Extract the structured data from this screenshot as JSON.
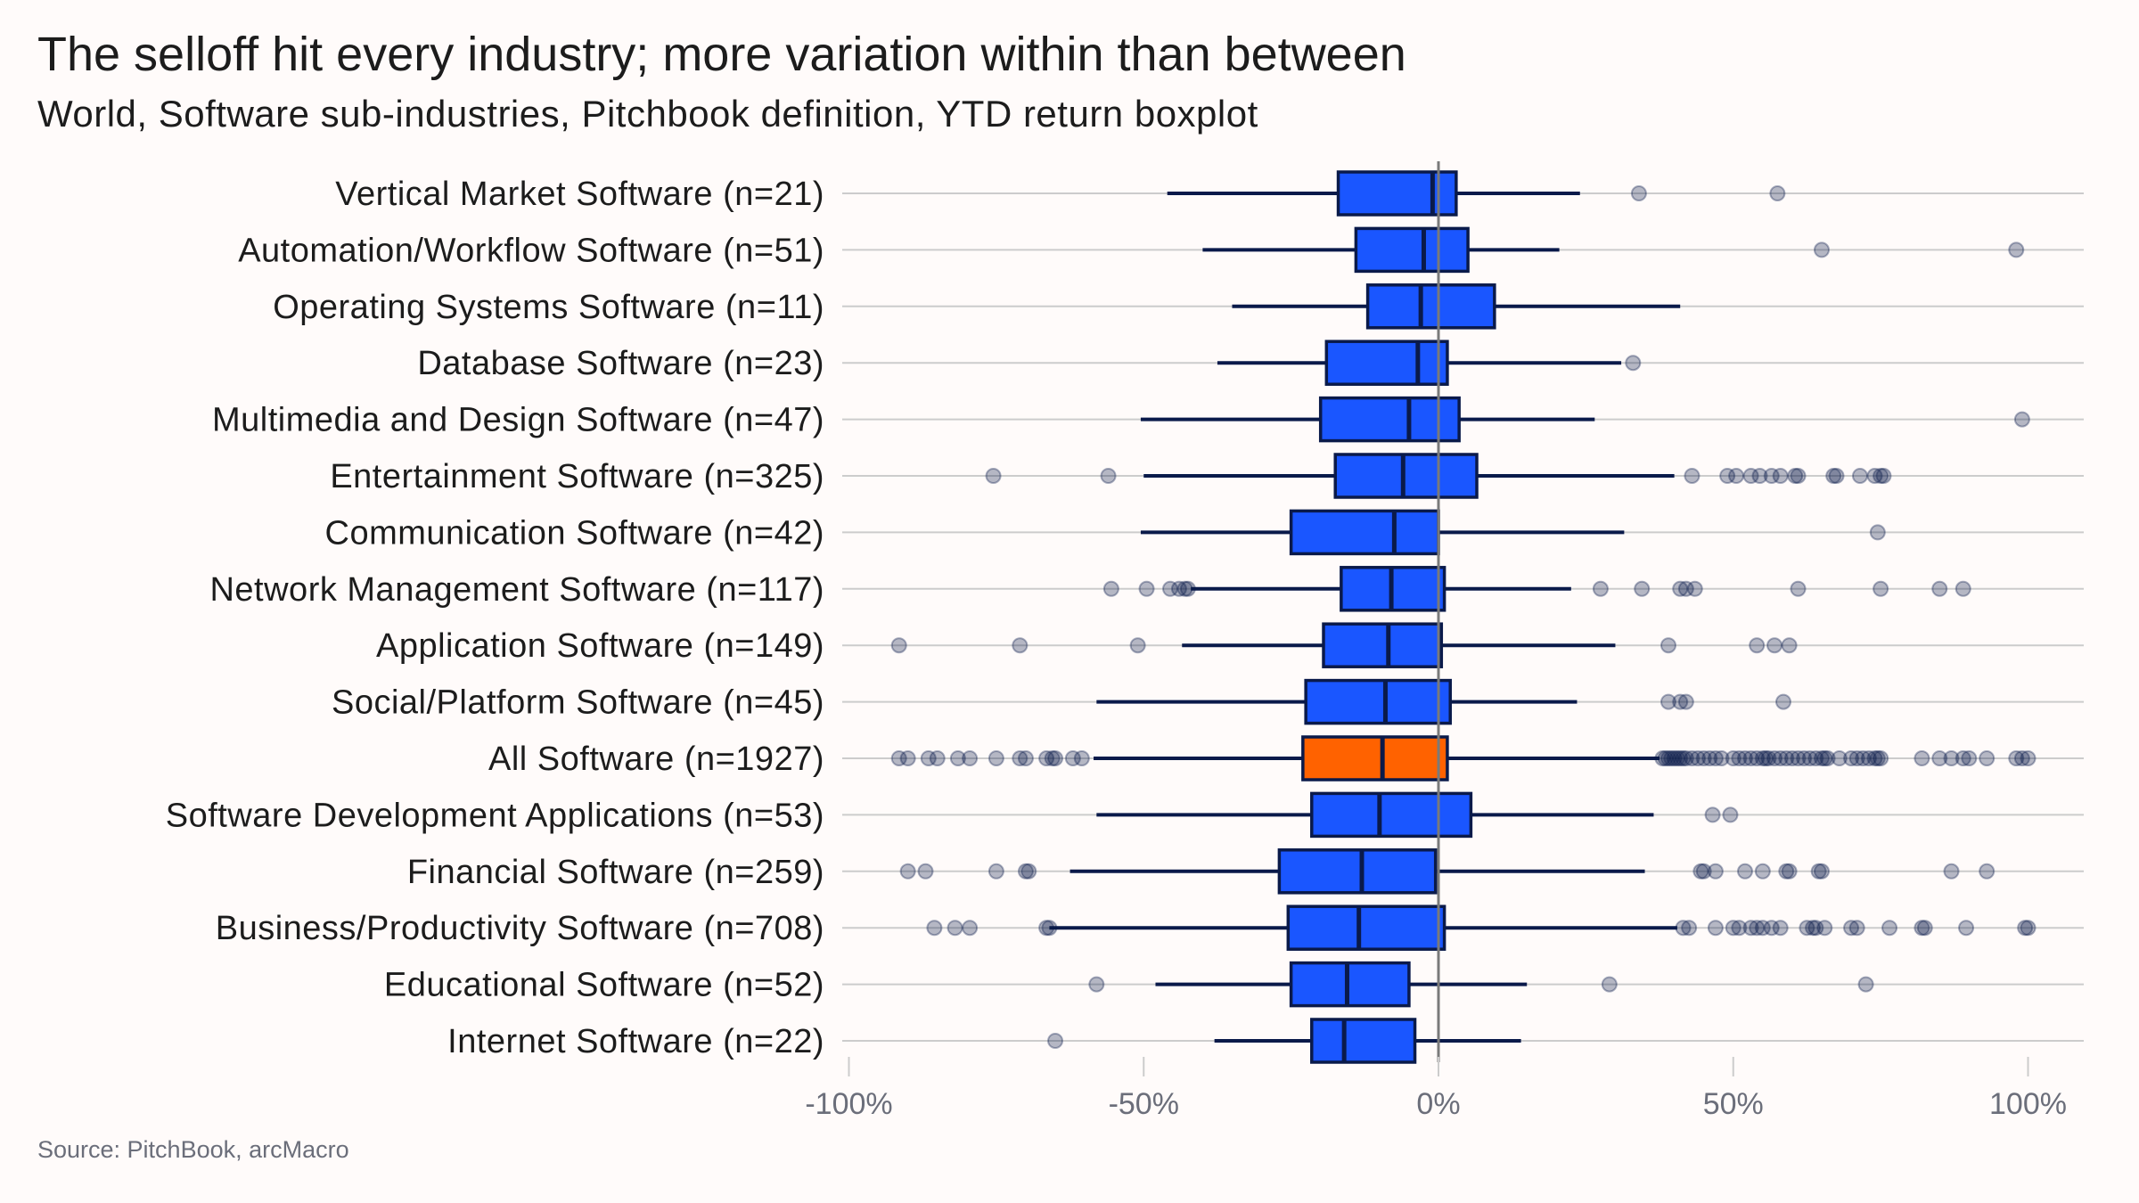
{
  "title": "The selloff hit every industry; more variation within than between",
  "subtitle": "World, Software sub-industries, Pitchbook definition, YTD return boxplot",
  "source": "Source: PitchBook, arcMacro",
  "colors": {
    "box": "#1a56ff",
    "highlight_box": "#ff6200",
    "outline": "#0a1a4a",
    "outlier": "#0a1a4a",
    "zero_line": "#7a7a7a",
    "grid": "#cccccc",
    "background": "#fffbfa"
  },
  "chart_data": {
    "type": "boxplot",
    "orientation": "horizontal",
    "xlim": [
      -100,
      108
    ],
    "x_ticks": [
      -100,
      -50,
      0,
      50,
      100
    ],
    "x_tick_labels": [
      "-100%",
      "-50%",
      "0%",
      "50%",
      "100%"
    ],
    "reference_line": 0,
    "grid": "horizontal category lines",
    "groups": [
      {
        "label": "Vertical Market Software  (n=21)",
        "whisker_low": -46,
        "q1": -17,
        "median": -1,
        "q3": 3,
        "whisker_high": 24,
        "outliers": [
          34,
          57.5
        ]
      },
      {
        "label": "Automation/Workflow Software  (n=51)",
        "whisker_low": -40,
        "q1": -14,
        "median": -2.5,
        "q3": 5,
        "whisker_high": 20.5,
        "outliers": [
          65,
          98
        ]
      },
      {
        "label": "Operating Systems Software  (n=11)",
        "whisker_low": -35,
        "q1": -12,
        "median": -3,
        "q3": 9.5,
        "whisker_high": 41,
        "outliers": []
      },
      {
        "label": "Database Software  (n=23)",
        "whisker_low": -37.5,
        "q1": -19,
        "median": -3.5,
        "q3": 1.5,
        "whisker_high": 31,
        "outliers": [
          33
        ]
      },
      {
        "label": "Multimedia and Design Software  (n=47)",
        "whisker_low": -50.5,
        "q1": -20,
        "median": -5,
        "q3": 3.5,
        "whisker_high": 26.5,
        "outliers": [
          99
        ]
      },
      {
        "label": "Entertainment Software  (n=325)",
        "whisker_low": -50,
        "q1": -17.5,
        "median": -6,
        "q3": 6.5,
        "whisker_high": 40,
        "outliers": [
          -75.5,
          -56,
          43,
          49,
          50.5,
          53,
          54.5,
          56.5,
          58,
          60.5,
          61,
          67,
          67.5,
          71.5,
          74,
          75,
          75.5
        ]
      },
      {
        "label": "Communication Software  (n=42)",
        "whisker_low": -50.5,
        "q1": -25,
        "median": -7.5,
        "q3": 0,
        "whisker_high": 31.5,
        "outliers": [
          74.5
        ]
      },
      {
        "label": "Network Management Software  (n=117)",
        "whisker_low": -42,
        "q1": -16.5,
        "median": -8,
        "q3": 1,
        "whisker_high": 22.5,
        "outliers": [
          -55.5,
          -49.5,
          -45.5,
          -44,
          -43,
          -42.5,
          27.5,
          34.5,
          41,
          42,
          43.5,
          61,
          75,
          85,
          89
        ]
      },
      {
        "label": "Application Software  (n=149)",
        "whisker_low": -43.5,
        "q1": -19.5,
        "median": -8.5,
        "q3": 0.5,
        "whisker_high": 30,
        "outliers": [
          -91.5,
          -71,
          -51,
          39,
          54,
          57,
          59.5
        ]
      },
      {
        "label": "Social/Platform Software  (n=45)",
        "whisker_low": -58,
        "q1": -22.5,
        "median": -9,
        "q3": 2,
        "whisker_high": 23.5,
        "outliers": [
          39,
          41,
          42,
          58.5
        ]
      },
      {
        "label": "All Software  (n=1927)",
        "highlight": true,
        "whisker_low": -58.5,
        "q1": -23,
        "median": -9.5,
        "q3": 1.5,
        "whisker_high": 37.5,
        "outliers": [
          -91.5,
          -90,
          -86.5,
          -85,
          -81.5,
          -79.5,
          -75,
          -71,
          -70,
          -66.5,
          -65.5,
          -65,
          -62,
          -60.5,
          38,
          38.5,
          39,
          39.5,
          40,
          40.5,
          41,
          41.5,
          42,
          43,
          44,
          45,
          46,
          47,
          48,
          50,
          51,
          52,
          53,
          54,
          55,
          55.5,
          56,
          57,
          58,
          59,
          60,
          61,
          62,
          63,
          64,
          65,
          65.5,
          66,
          68,
          70,
          71,
          72,
          73,
          74,
          74.5,
          75,
          82,
          85,
          87,
          89,
          90,
          93,
          98,
          99,
          100
        ]
      },
      {
        "label": "Software Development Applications  (n=53)",
        "whisker_low": -58,
        "q1": -21.5,
        "median": -10,
        "q3": 5.5,
        "whisker_high": 36.5,
        "outliers": [
          46.5,
          49.5
        ]
      },
      {
        "label": "Financial Software  (n=259)",
        "whisker_low": -62.5,
        "q1": -27,
        "median": -13,
        "q3": -0.5,
        "whisker_high": 35,
        "outliers": [
          -90,
          -87,
          -75,
          -70,
          -69.5,
          44.5,
          45,
          47,
          52,
          55,
          59,
          59.5,
          64.5,
          65,
          87,
          93
        ]
      },
      {
        "label": "Business/Productivity Software  (n=708)",
        "whisker_low": -66,
        "q1": -25.5,
        "median": -13.5,
        "q3": 1,
        "whisker_high": 40.5,
        "outliers": [
          -85.5,
          -82,
          -79.5,
          -66.5,
          -66,
          41.5,
          42.5,
          47,
          50,
          51,
          53,
          54,
          55,
          56.5,
          58,
          62.5,
          63.5,
          64,
          65.5,
          70,
          71,
          76.5,
          82,
          82.5,
          89.5,
          99.5,
          100
        ]
      },
      {
        "label": "Educational Software  (n=52)",
        "whisker_low": -48,
        "q1": -25,
        "median": -15.5,
        "q3": -5,
        "whisker_high": 15,
        "outliers": [
          -58,
          29,
          72.5
        ]
      },
      {
        "label": "Internet Software  (n=22)",
        "whisker_low": -38,
        "q1": -21.5,
        "median": -16,
        "q3": -4,
        "whisker_high": 14,
        "outliers": [
          -65
        ]
      }
    ]
  }
}
